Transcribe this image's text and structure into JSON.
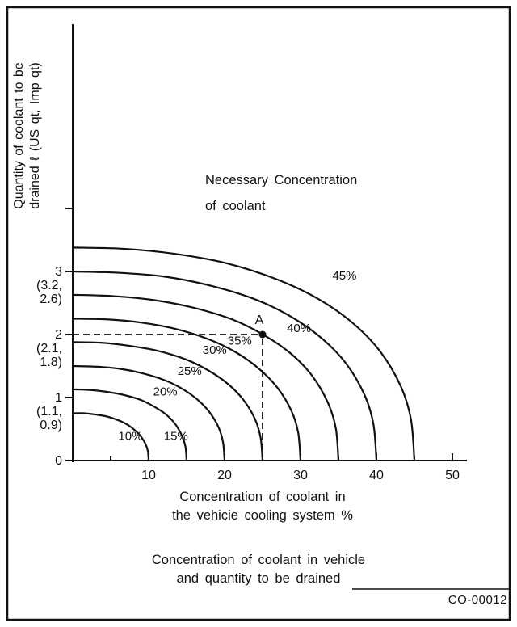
{
  "figure": {
    "code": "CO-00012",
    "caption_lines": [
      "Concentration of coolant in vehicle",
      "and quantity to be drained"
    ]
  },
  "chart_data": {
    "type": "line",
    "title": "Concentration of coolant in vehicle and quantity to be drained",
    "title_lines": [
      "Necessary Concentration",
      "of coolant"
    ],
    "xlabel": "Concentration of coolant in the vehicie cooling system %",
    "xlabel_lines": [
      "Concentration of coolant in",
      "the vehicie cooling system %"
    ],
    "ylabel": "Quantity of coolant to be drained ℓ (US qt, Imp qt)",
    "ylabel_lines": [
      "Quantity of coolant to be",
      "drained ℓ (US qt, Imp qt)"
    ],
    "xlim": [
      0,
      50
    ],
    "ylim": [
      0,
      4
    ],
    "grid": false,
    "legend": "none",
    "x_axis": {
      "max": 50,
      "major_ticks": [
        10,
        20,
        30,
        40,
        50
      ],
      "minor_ticks": [
        5,
        15,
        25,
        35,
        45
      ]
    },
    "y_axis": {
      "ticks": [
        {
          "value": 0,
          "lines": [
            "0"
          ]
        },
        {
          "value": 1,
          "lines": [
            "1",
            "(1.1,",
            "0.9)"
          ]
        },
        {
          "value": 2,
          "lines": [
            "2",
            "(2.1,",
            "1.8)"
          ]
        },
        {
          "value": 3,
          "lines": [
            "3",
            "(3.2,",
            "2.6)"
          ]
        },
        {
          "value": 4,
          "lines": []
        }
      ]
    },
    "series": [
      {
        "label": "10%",
        "label_pos": [
          6.0,
          0.33
        ],
        "points": [
          [
            0,
            0.75
          ],
          [
            1.5,
            0.75
          ],
          [
            3,
            0.73
          ],
          [
            4.5,
            0.7
          ],
          [
            6,
            0.64
          ],
          [
            7.2,
            0.57
          ],
          [
            8.2,
            0.48
          ],
          [
            9,
            0.38
          ],
          [
            9.6,
            0.26
          ],
          [
            9.9,
            0.15
          ],
          [
            10,
            0
          ]
        ]
      },
      {
        "label": "15%",
        "label_pos": [
          12.0,
          0.33
        ],
        "points": [
          [
            0,
            1.13
          ],
          [
            2.25,
            1.12
          ],
          [
            4.5,
            1.09
          ],
          [
            6.75,
            1.04
          ],
          [
            9,
            0.96
          ],
          [
            10.8,
            0.85
          ],
          [
            12.3,
            0.73
          ],
          [
            13.5,
            0.58
          ],
          [
            14.4,
            0.39
          ],
          [
            14.85,
            0.22
          ],
          [
            15,
            0
          ]
        ]
      },
      {
        "label": "20%",
        "label_pos": [
          10.6,
          1.03
        ],
        "points": [
          [
            0,
            1.5
          ],
          [
            3,
            1.49
          ],
          [
            6,
            1.46
          ],
          [
            9,
            1.39
          ],
          [
            12,
            1.28
          ],
          [
            14.4,
            1.14
          ],
          [
            16.4,
            0.97
          ],
          [
            18,
            0.77
          ],
          [
            19.2,
            0.53
          ],
          [
            19.8,
            0.29
          ],
          [
            20,
            0
          ]
        ]
      },
      {
        "label": "25%",
        "label_pos": [
          13.8,
          1.36
        ],
        "points": [
          [
            0,
            1.88
          ],
          [
            3.75,
            1.87
          ],
          [
            7.5,
            1.82
          ],
          [
            11.25,
            1.74
          ],
          [
            15,
            1.6
          ],
          [
            18,
            1.42
          ],
          [
            20.5,
            1.21
          ],
          [
            22.5,
            0.96
          ],
          [
            24,
            0.66
          ],
          [
            24.75,
            0.36
          ],
          [
            25,
            0
          ]
        ]
      },
      {
        "label": "30%",
        "label_pos": [
          17.1,
          1.69
        ],
        "points": [
          [
            0,
            2.25
          ],
          [
            4.5,
            2.24
          ],
          [
            9,
            2.19
          ],
          [
            13.5,
            2.09
          ],
          [
            18,
            1.92
          ],
          [
            21.6,
            1.71
          ],
          [
            24.6,
            1.45
          ],
          [
            27,
            1.15
          ],
          [
            28.8,
            0.79
          ],
          [
            29.7,
            0.44
          ],
          [
            30,
            0
          ]
        ]
      },
      {
        "label": "35%",
        "label_pos": [
          20.4,
          1.84
        ],
        "points": [
          [
            0,
            2.63
          ],
          [
            5.25,
            2.61
          ],
          [
            10.5,
            2.55
          ],
          [
            15.75,
            2.43
          ],
          [
            21,
            2.24
          ],
          [
            25.2,
            1.99
          ],
          [
            28.7,
            1.7
          ],
          [
            31.5,
            1.35
          ],
          [
            33.6,
            0.92
          ],
          [
            34.65,
            0.51
          ],
          [
            35,
            0
          ]
        ]
      },
      {
        "label": "40%",
        "label_pos": [
          28.2,
          2.04
        ],
        "points": [
          [
            0,
            3.0
          ],
          [
            6,
            2.98
          ],
          [
            12,
            2.92
          ],
          [
            18,
            2.78
          ],
          [
            24,
            2.56
          ],
          [
            28.8,
            2.28
          ],
          [
            32.8,
            1.94
          ],
          [
            36,
            1.54
          ],
          [
            38.4,
            1.05
          ],
          [
            39.6,
            0.58
          ],
          [
            40,
            0
          ]
        ]
      },
      {
        "label": "45%",
        "label_pos": [
          34.2,
          2.87
        ],
        "points": [
          [
            0,
            3.38
          ],
          [
            6.75,
            3.36
          ],
          [
            13.5,
            3.28
          ],
          [
            20.25,
            3.13
          ],
          [
            27,
            2.87
          ],
          [
            32.4,
            2.56
          ],
          [
            36.9,
            2.18
          ],
          [
            40.5,
            1.73
          ],
          [
            43.2,
            1.18
          ],
          [
            44.55,
            0.65
          ],
          [
            45,
            0
          ]
        ]
      }
    ],
    "marker": {
      "label": "A",
      "x": 25,
      "y": 2,
      "guides": "dashed"
    },
    "colors": {
      "ink": "#111111",
      "background": "#ffffff"
    }
  }
}
